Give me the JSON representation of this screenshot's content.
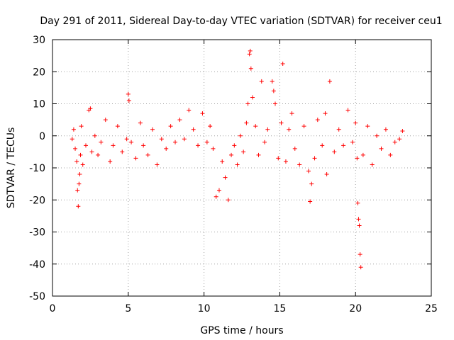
{
  "chart_data": {
    "type": "scatter",
    "title": "Day 291 of 2011, Sidereal Day-to-day VTEC variation (SDTVAR) for receiver ceu1",
    "xlabel": "GPS time / hours",
    "ylabel": "SDTVAR / TECUs",
    "xlim": [
      0,
      25
    ],
    "ylim": [
      -50,
      30
    ],
    "grid": true,
    "marker": "+",
    "color": "#ff0000",
    "xticks": [
      0,
      5,
      10,
      15,
      20,
      25
    ],
    "xtick_labels": [
      "0",
      "5",
      "10",
      "15",
      "20",
      "25"
    ],
    "yticks": [
      -50,
      -40,
      -30,
      -20,
      -10,
      0,
      10,
      20,
      30
    ],
    "ytick_labels": [
      "-50",
      "-40",
      "-30",
      "-20",
      "-10",
      "0",
      "10",
      "20",
      "30"
    ],
    "series": [
      {
        "name": "SDTVAR",
        "x": [
          1.3,
          1.4,
          1.5,
          1.6,
          1.65,
          1.7,
          1.75,
          1.8,
          1.85,
          1.9,
          2.0,
          2.2,
          2.4,
          2.5,
          2.6,
          2.8,
          3.0,
          3.2,
          3.5,
          3.8,
          4.0,
          4.3,
          4.6,
          4.9,
          5.0,
          5.05,
          5.2,
          5.5,
          5.8,
          6.0,
          6.3,
          6.6,
          6.9,
          7.2,
          7.5,
          7.8,
          8.1,
          8.4,
          8.7,
          9.0,
          9.3,
          9.6,
          9.9,
          10.2,
          10.4,
          10.6,
          10.8,
          11.0,
          11.2,
          11.4,
          11.6,
          11.8,
          12.0,
          12.2,
          12.4,
          12.6,
          12.8,
          12.9,
          13.0,
          13.05,
          13.1,
          13.2,
          13.4,
          13.6,
          13.8,
          14.0,
          14.2,
          14.5,
          14.6,
          14.7,
          14.9,
          15.1,
          15.2,
          15.4,
          15.6,
          15.8,
          16.0,
          16.3,
          16.6,
          16.9,
          17.0,
          17.1,
          17.3,
          17.5,
          17.8,
          18.0,
          18.1,
          18.3,
          18.6,
          18.9,
          19.2,
          19.5,
          19.8,
          20.0,
          20.1,
          20.15,
          20.2,
          20.25,
          20.3,
          20.35,
          20.5,
          20.8,
          21.1,
          21.4,
          21.7,
          22.0,
          22.3,
          22.6,
          22.9,
          23.1
        ],
        "y": [
          -1,
          2,
          -4,
          -8,
          -17,
          -22,
          -15,
          -12,
          -6,
          3,
          -9,
          -3,
          8,
          8.5,
          -5,
          0,
          -6,
          -2,
          5,
          -8,
          -3,
          3,
          -5,
          -1,
          13,
          11,
          -2,
          -7,
          4,
          -3,
          -6,
          2,
          -9,
          -1,
          -4,
          3,
          -2,
          5,
          -1,
          8,
          2,
          -3,
          7,
          -2,
          3,
          -4,
          -19,
          -17,
          -8,
          -13,
          -20,
          -6,
          -3,
          -9,
          0,
          -5,
          4,
          10,
          25.5,
          26.5,
          21,
          12,
          3,
          -6,
          17,
          -2,
          2,
          17,
          14,
          10,
          -7,
          4,
          22.5,
          -8,
          2,
          7,
          -4,
          -9,
          3,
          -11,
          -20.5,
          -15,
          -7,
          5,
          -3,
          7,
          -12,
          17,
          -5,
          2,
          -3,
          8,
          -2,
          4,
          -7,
          -21,
          -26,
          -28,
          -37,
          -41,
          -6,
          3,
          -9,
          0,
          -4,
          2,
          -6,
          -2,
          -1,
          1.5
        ]
      }
    ]
  }
}
